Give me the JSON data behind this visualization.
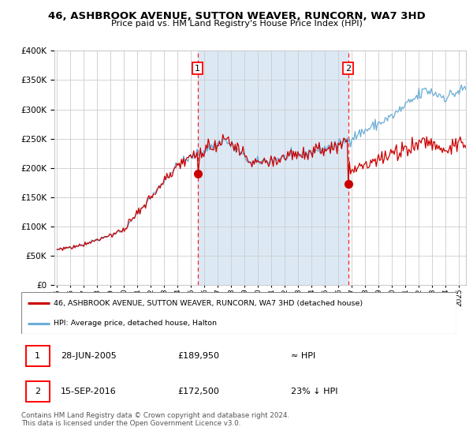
{
  "title": "46, ASHBROOK AVENUE, SUTTON WEAVER, RUNCORN, WA7 3HD",
  "subtitle": "Price paid vs. HM Land Registry's House Price Index (HPI)",
  "legend_line1": "46, ASHBROOK AVENUE, SUTTON WEAVER, RUNCORN, WA7 3HD (detached house)",
  "legend_line2": "HPI: Average price, detached house, Halton",
  "sale1_date": "28-JUN-2005",
  "sale1_price": "£189,950",
  "sale1_hpi": "≈ HPI",
  "sale2_date": "15-SEP-2016",
  "sale2_price": "£172,500",
  "sale2_hpi": "23% ↓ HPI",
  "footer": "Contains HM Land Registry data © Crown copyright and database right 2024.\nThis data is licensed under the Open Government Licence v3.0.",
  "hpi_line_color": "#6baed6",
  "property_line_color": "#cc0000",
  "sale1_x_year": 2005.49,
  "sale2_x_year": 2016.71,
  "sale1_price_val": 189950,
  "sale2_price_val": 172500,
  "ylim": [
    0,
    400000
  ],
  "xlim_start": 1994.8,
  "xlim_end": 2025.5,
  "shaded_color": "#dce9f5",
  "plot_bg": "#ffffff",
  "grid_color": "#cccccc",
  "shaded_region_start": 2005.49,
  "shaded_region_end": 2016.71
}
